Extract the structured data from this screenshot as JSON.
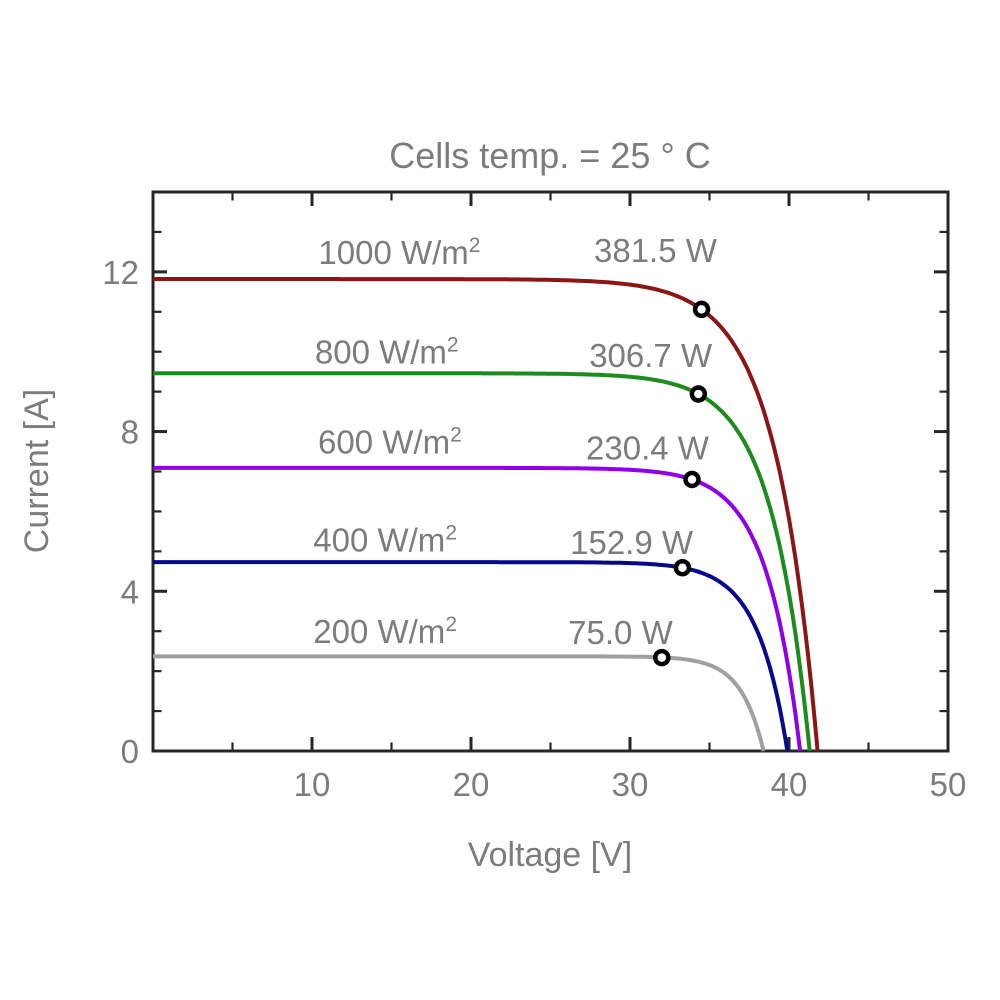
{
  "title": "Cells temp. = 25 ° C",
  "axes": {
    "xlabel": "Voltage [V]",
    "ylabel": "Current [A]",
    "text_color": "#7c7c7c",
    "axis_color": "#262626"
  },
  "chart_data": {
    "type": "line",
    "title": "Cells temp. = 25 ° C",
    "xlabel": "Voltage [V]",
    "ylabel": "Current [A]",
    "xlim": [
      0,
      50
    ],
    "ylim": [
      0,
      14
    ],
    "x_major_ticks": [
      10,
      20,
      30,
      40,
      50
    ],
    "x_minor_ticks": [
      5,
      15,
      25,
      35,
      45
    ],
    "y_major_ticks": [
      0,
      4,
      8,
      12
    ],
    "y_minor_ticks": [
      1,
      2,
      3,
      5,
      6,
      7,
      9,
      10,
      11,
      13
    ],
    "grid": false,
    "legend": "inline-labels",
    "marker_style": {
      "shape": "open-circle",
      "stroke": "#000000",
      "fill": "#ffffff"
    },
    "series": [
      {
        "id": "1000",
        "irradiance_value": "1000",
        "unit_base": "W/m",
        "unit_sup": "2",
        "color": "#8c1616",
        "isc": 11.82,
        "voc": 41.8,
        "knee": 2.66,
        "mpp": {
          "v": 34.5,
          "i": 11.06,
          "power_label": "381.5 W"
        },
        "irr_label_pos": {
          "v": 15.5,
          "i": 12.5
        },
        "power_label_pos": {
          "v": 31.6,
          "i": 12.55
        }
      },
      {
        "id": "800",
        "irradiance_value": "800",
        "unit_base": "W/m",
        "unit_sup": "2",
        "color": "#1c8c1c",
        "isc": 9.46,
        "voc": 41.3,
        "knee": 2.41,
        "mpp": {
          "v": 34.3,
          "i": 8.94,
          "power_label": "306.7 W"
        },
        "irr_label_pos": {
          "v": 14.7,
          "i": 10.0
        },
        "power_label_pos": {
          "v": 31.3,
          "i": 9.92
        }
      },
      {
        "id": "600",
        "irradiance_value": "600",
        "unit_base": "W/m",
        "unit_sup": "2",
        "color": "#8f00e8",
        "isc": 7.09,
        "voc": 40.7,
        "knee": 2.13,
        "mpp": {
          "v": 33.9,
          "i": 6.8,
          "power_label": "230.4 W"
        },
        "irr_label_pos": {
          "v": 14.9,
          "i": 7.75
        },
        "power_label_pos": {
          "v": 31.1,
          "i": 7.6
        }
      },
      {
        "id": "400",
        "irradiance_value": "400",
        "unit_base": "W/m",
        "unit_sup": "2",
        "color": "#08088f",
        "isc": 4.73,
        "voc": 39.9,
        "knee": 1.88,
        "mpp": {
          "v": 33.3,
          "i": 4.59,
          "power_label": "152.9 W"
        },
        "irr_label_pos": {
          "v": 14.6,
          "i": 5.3
        },
        "power_label_pos": {
          "v": 30.1,
          "i": 5.23
        }
      },
      {
        "id": "200",
        "irradiance_value": "200",
        "unit_base": "W/m",
        "unit_sup": "2",
        "color": "#a0a0a0",
        "isc": 2.37,
        "voc": 38.4,
        "knee": 1.42,
        "mpp": {
          "v": 32.0,
          "i": 2.34,
          "power_label": "75.0 W"
        },
        "irr_label_pos": {
          "v": 14.6,
          "i": 3.0
        },
        "power_label_pos": {
          "v": 29.4,
          "i": 2.98
        }
      }
    ]
  }
}
